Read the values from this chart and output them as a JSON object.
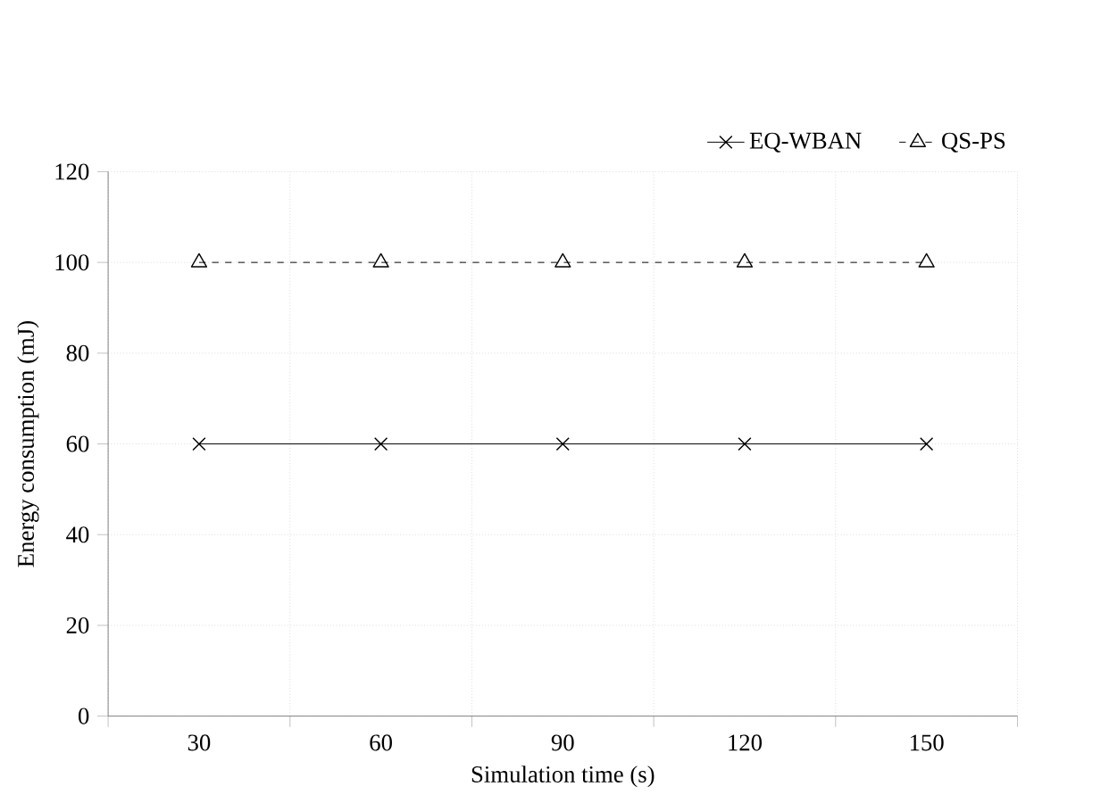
{
  "chart_data": {
    "type": "line",
    "xlabel": "Simulation time (s)",
    "ylabel": "Energy consumption (mJ)",
    "categories": [
      "30",
      "60",
      "90",
      "120",
      "150"
    ],
    "series": [
      {
        "name": "EQ-WBAN",
        "color": "#000000",
        "values": [
          60,
          60,
          60,
          60,
          60
        ],
        "marker": "cross",
        "line_style": "solid"
      },
      {
        "name": "QS-PS",
        "color": "#000000",
        "values": [
          100,
          100,
          100,
          100,
          100
        ],
        "marker": "triangle",
        "line_style": "dashed"
      }
    ],
    "ylim": [
      0,
      120
    ],
    "yticks": [
      0,
      20,
      40,
      60,
      80,
      100,
      120
    ],
    "grid": true,
    "legend": "top right"
  }
}
